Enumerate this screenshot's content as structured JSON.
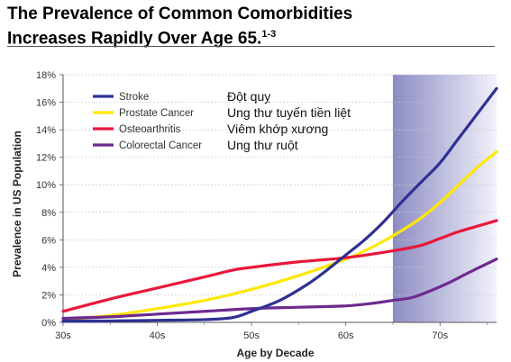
{
  "title": {
    "line1": "The Prevalence  of Common Comorbidities",
    "line2": "Increases Rapidly Over Age 65.",
    "superscript": "1-3"
  },
  "chart_data": {
    "type": "line",
    "xlabel": "Age by Decade",
    "ylabel": "Prevalence in US Population",
    "x_ticks": [
      "30s",
      "40s",
      "50s",
      "60s",
      "70s"
    ],
    "y_ticks": [
      "0%",
      "2%",
      "4%",
      "6%",
      "8%",
      "10%",
      "12%",
      "14%",
      "16%",
      "18%"
    ],
    "xlim": [
      30,
      76
    ],
    "ylim": [
      0,
      18
    ],
    "grid": true,
    "legend_position": "top-left",
    "shaded_region": {
      "from": 65,
      "to": 76,
      "color": "#8c8cc4"
    },
    "series": [
      {
        "name": "Stroke",
        "translation": "Đột quỵ",
        "color": "#2e3192",
        "x": [
          30,
          35,
          40,
          45,
          48,
          50,
          53,
          56,
          58,
          60,
          62,
          64,
          66,
          68,
          70,
          72,
          74,
          76
        ],
        "y": [
          0.1,
          0.1,
          0.15,
          0.2,
          0.35,
          0.8,
          1.6,
          2.8,
          3.8,
          4.9,
          6.0,
          7.3,
          8.8,
          10.2,
          11.6,
          13.4,
          15.2,
          17.0
        ]
      },
      {
        "name": "Prostate Cancer",
        "translation": "Ung thư tuyến tiền liệt",
        "color": "#ffe800",
        "x": [
          30,
          35,
          40,
          45,
          50,
          55,
          60,
          62,
          64,
          66,
          68,
          70,
          72,
          74,
          76
        ],
        "y": [
          0.2,
          0.5,
          1.0,
          1.6,
          2.4,
          3.4,
          4.6,
          5.2,
          5.9,
          6.7,
          7.6,
          8.7,
          10.0,
          11.3,
          12.4
        ]
      },
      {
        "name": "Osteoarthritis",
        "translation": "Viêm khớp xương",
        "color": "#e8173a",
        "x": [
          30,
          35,
          40,
          45,
          48,
          50,
          55,
          60,
          65,
          68,
          70,
          72,
          74,
          76
        ],
        "y": [
          0.8,
          1.7,
          2.5,
          3.3,
          3.8,
          4.0,
          4.4,
          4.7,
          5.2,
          5.6,
          6.1,
          6.6,
          7.0,
          7.4
        ]
      },
      {
        "name": "Colorectal Cancer",
        "translation": "Ung thư ruột",
        "color": "#6d2a8f",
        "x": [
          30,
          35,
          40,
          45,
          50,
          55,
          60,
          63,
          65,
          67,
          69,
          71,
          73,
          76
        ],
        "y": [
          0.3,
          0.4,
          0.6,
          0.8,
          1.0,
          1.1,
          1.2,
          1.4,
          1.6,
          1.8,
          2.3,
          2.9,
          3.6,
          4.6
        ]
      }
    ]
  }
}
